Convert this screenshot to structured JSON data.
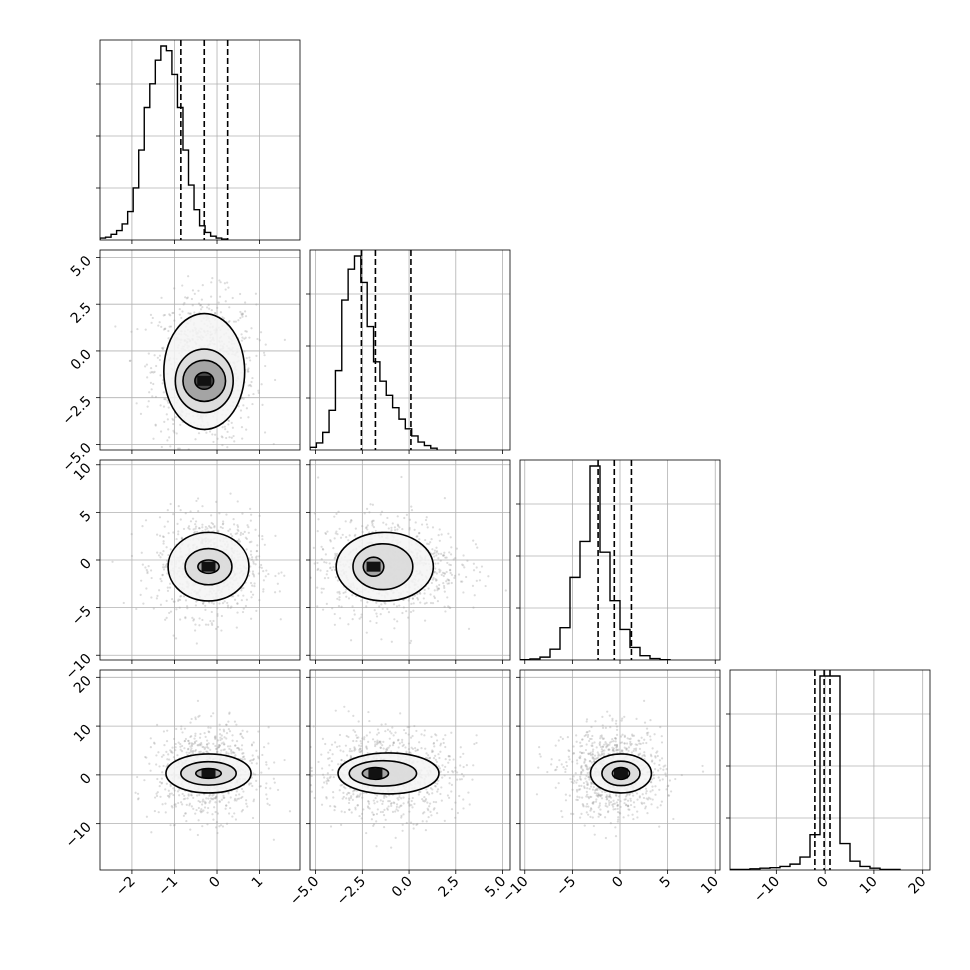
{
  "chart_data": {
    "type": "corner",
    "grid": true,
    "variables": [
      {
        "index": 0,
        "range": [
          -2.75,
          1.95
        ],
        "ticks": [
          "−2",
          "−1",
          "0",
          "1"
        ],
        "tick_values": [
          -2,
          -1,
          0,
          1
        ]
      },
      {
        "index": 1,
        "range": [
          -5.3,
          5.4
        ],
        "ticks": [
          "−5.0",
          "−2.5",
          "0.0",
          "2.5",
          "5.0"
        ],
        "tick_values": [
          -5,
          -2.5,
          0,
          2.5,
          5
        ]
      },
      {
        "index": 2,
        "range": [
          -10.5,
          10.5
        ],
        "ticks": [
          "−10",
          "−5",
          "0",
          "5",
          "10"
        ],
        "tick_values": [
          -10,
          -5,
          0,
          5,
          10
        ]
      },
      {
        "index": 3,
        "range": [
          -19.5,
          21.5
        ],
        "ticks": [
          "−10",
          "0",
          "10",
          "20"
        ],
        "tick_values": [
          -10,
          0,
          10,
          20
        ]
      }
    ],
    "y_axis_ranges": [
      null,
      [
        -5.3,
        5.4
      ],
      [
        -10.5,
        10.5
      ],
      [
        -19.5,
        21.5
      ]
    ],
    "y_axis_ticks": [
      null,
      [
        "−5.0",
        "−2.5",
        "0.0",
        "2.5",
        "5.0"
      ],
      [
        "−10",
        "−5",
        "0",
        "5",
        "10"
      ],
      [
        "−10",
        "0",
        "10",
        "20"
      ]
    ],
    "quantile_lines": [
      [
        -0.85,
        -0.3,
        0.25
      ],
      [
        -2.55,
        -1.8,
        0.1
      ],
      [
        -2.3,
        -0.6,
        1.2
      ],
      [
        -2.1,
        -0.2,
        1.0
      ]
    ],
    "histograms": [
      {
        "edges_start": -2.75,
        "bin_width": 0.13,
        "counts": [
          2,
          3,
          6,
          10,
          17,
          30,
          55,
          95,
          140,
          165,
          190,
          205,
          200,
          175,
          140,
          95,
          58,
          32,
          15,
          8,
          4,
          2,
          1
        ]
      },
      {
        "edges_start": -5.3,
        "bin_width": 0.34,
        "counts": [
          3,
          8,
          20,
          45,
          90,
          170,
          205,
          220,
          190,
          140,
          100,
          78,
          62,
          48,
          35,
          24,
          16,
          9,
          5,
          2
        ]
      },
      {
        "edges_start": -10.5,
        "bin_width": 1.05,
        "counts": [
          1,
          3,
          8,
          30,
          90,
          230,
          330,
          540,
          300,
          165,
          85,
          35,
          12,
          4,
          1
        ]
      },
      {
        "edges_start": -19.5,
        "bin_width": 2.05,
        "counts": [
          1,
          1,
          2,
          3,
          4,
          6,
          10,
          22,
          60,
          1300,
          1300,
          45,
          15,
          6,
          3,
          1,
          1
        ]
      }
    ],
    "contours": [
      {
        "row": 1,
        "col": 0,
        "center": [
          -0.3,
          -1.6
        ],
        "levels": [
          {
            "rx": 0.22,
            "ry": 0.45
          },
          {
            "rx": 0.5,
            "ry": 1.1
          },
          {
            "rx": 0.68,
            "ry": 1.7
          },
          {
            "rx": 0.95,
            "ry": 3.1,
            "offset_y": 0.5
          }
        ]
      },
      {
        "row": 2,
        "col": 0,
        "center": [
          -0.2,
          -0.7
        ],
        "levels": [
          {
            "rx": 0.25,
            "ry": 0.7
          },
          {
            "rx": 0.55,
            "ry": 1.9
          },
          {
            "rx": 0.95,
            "ry": 3.6
          }
        ]
      },
      {
        "row": 2,
        "col": 1,
        "center": [
          -1.9,
          -0.7
        ],
        "levels": [
          {
            "rx": 0.55,
            "ry": 1.0
          },
          {
            "rx": 1.6,
            "ry": 2.4,
            "offset_x": 0.5
          },
          {
            "rx": 2.6,
            "ry": 3.6,
            "offset_x": 0.6
          }
        ]
      },
      {
        "row": 3,
        "col": 0,
        "center": [
          -0.2,
          0.3
        ],
        "levels": [
          {
            "rx": 0.3,
            "ry": 1.0
          },
          {
            "rx": 0.65,
            "ry": 2.4
          },
          {
            "rx": 1.0,
            "ry": 4.0
          }
        ]
      },
      {
        "row": 3,
        "col": 1,
        "center": [
          -1.8,
          0.3
        ],
        "levels": [
          {
            "rx": 0.7,
            "ry": 1.2
          },
          {
            "rx": 1.8,
            "ry": 2.6,
            "offset_x": 0.4
          },
          {
            "rx": 2.7,
            "ry": 4.2,
            "offset_x": 0.7
          }
        ]
      },
      {
        "row": 3,
        "col": 2,
        "center": [
          0.1,
          0.3
        ],
        "levels": [
          {
            "rx": 0.9,
            "ry": 1.2
          },
          {
            "rx": 2.0,
            "ry": 2.5
          },
          {
            "rx": 3.2,
            "ry": 4.0
          }
        ]
      }
    ],
    "scatter_spread": [
      {
        "row": 1,
        "col": 0,
        "sx": 0.6,
        "sy": 2.0,
        "mx": -0.3,
        "my": -1.0
      },
      {
        "row": 2,
        "col": 0,
        "sx": 0.6,
        "sy": 2.6,
        "mx": -0.2,
        "my": -0.6
      },
      {
        "row": 2,
        "col": 1,
        "sx": 1.9,
        "sy": 2.6,
        "mx": -1.1,
        "my": -0.6
      },
      {
        "row": 3,
        "col": 0,
        "sx": 0.6,
        "sy": 4.5,
        "mx": -0.2,
        "my": 0.3
      },
      {
        "row": 3,
        "col": 1,
        "sx": 1.9,
        "sy": 4.5,
        "mx": -1.1,
        "my": 0.3
      },
      {
        "row": 3,
        "col": 2,
        "sx": 2.6,
        "sy": 4.5,
        "mx": -0.6,
        "my": 0.3
      }
    ],
    "colors": {
      "line": "#000000",
      "grid": "#b0b0b0",
      "scatter": "#9a9a9a",
      "density_dark": "#111111",
      "density_light": "#f2f2f2"
    }
  }
}
